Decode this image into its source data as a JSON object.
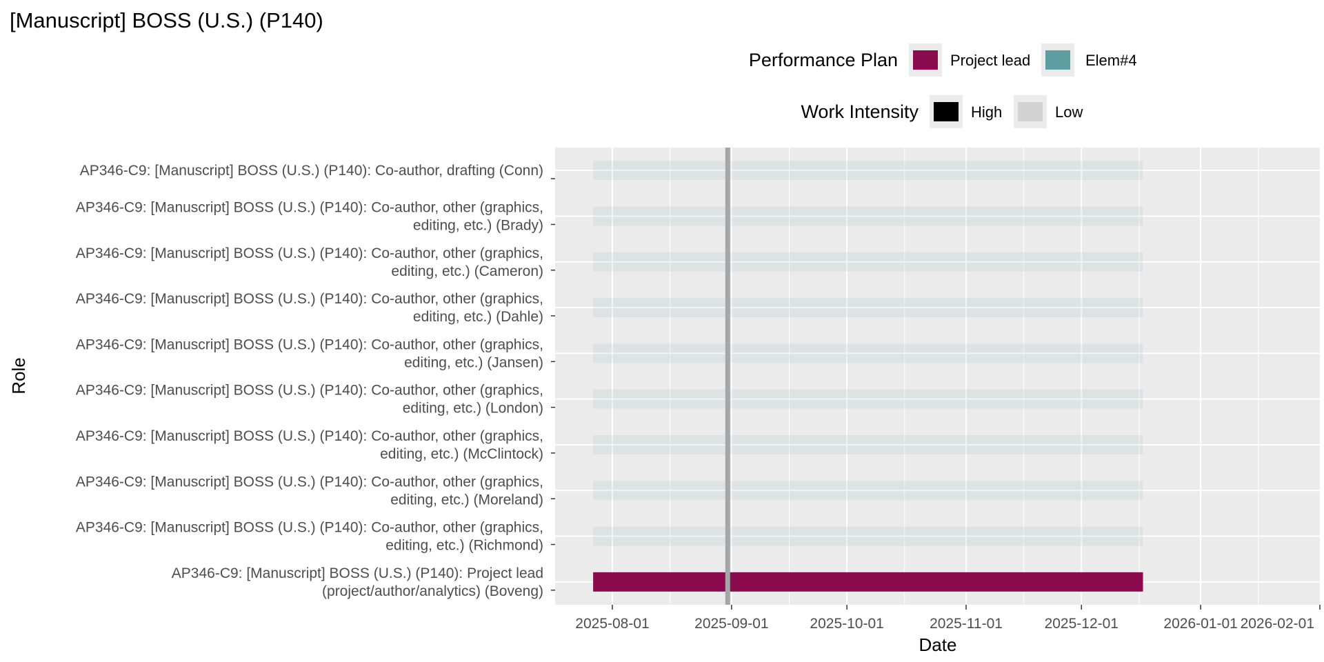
{
  "chart_data": {
    "type": "gantt",
    "title": "[Manuscript] BOSS (U.S.) (P140)",
    "xlabel": "Date",
    "ylabel": "Role",
    "x_axis": {
      "type": "date",
      "range": [
        "2025-07-17",
        "2026-02-01"
      ],
      "ticks": [
        "2025-08-01",
        "2025-09-01",
        "2025-10-01",
        "2025-11-01",
        "2025-12-01",
        "2026-01-01",
        "2026-02-01"
      ]
    },
    "reference_line": {
      "date": "2025-08-31",
      "color": "#a6a6a6"
    },
    "legends": [
      {
        "title": "Performance Plan",
        "entries": [
          {
            "label": "Project lead",
            "color": "#8b0b4e"
          },
          {
            "label": "Elem#4",
            "color": "#5f9ea0"
          }
        ]
      },
      {
        "title": "Work Intensity",
        "entries": [
          {
            "label": "High",
            "color": "#000000"
          },
          {
            "label": "Low",
            "color": "#d3d3d3"
          }
        ]
      }
    ],
    "tasks": [
      {
        "role": [
          "AP346-C9: [Manuscript] BOSS (U.S.) (P140): Co-author, drafting (Conn)"
        ],
        "start": "2025-07-27",
        "end": "2025-12-17",
        "plan": "Elem#4",
        "intensity": "Low"
      },
      {
        "role": [
          "AP346-C9: [Manuscript] BOSS (U.S.) (P140): Co-author, other (graphics,",
          "editing, etc.) (Brady)"
        ],
        "start": "2025-07-27",
        "end": "2025-12-17",
        "plan": "Elem#4",
        "intensity": "Low"
      },
      {
        "role": [
          "AP346-C9: [Manuscript] BOSS (U.S.) (P140): Co-author, other (graphics,",
          "editing, etc.) (Cameron)"
        ],
        "start": "2025-07-27",
        "end": "2025-12-17",
        "plan": "Elem#4",
        "intensity": "Low"
      },
      {
        "role": [
          "AP346-C9: [Manuscript] BOSS (U.S.) (P140): Co-author, other (graphics,",
          "editing, etc.) (Dahle)"
        ],
        "start": "2025-07-27",
        "end": "2025-12-17",
        "plan": "Elem#4",
        "intensity": "Low"
      },
      {
        "role": [
          "AP346-C9: [Manuscript] BOSS (U.S.) (P140): Co-author, other (graphics,",
          "editing, etc.) (Jansen)"
        ],
        "start": "2025-07-27",
        "end": "2025-12-17",
        "plan": "Elem#4",
        "intensity": "Low"
      },
      {
        "role": [
          "AP346-C9: [Manuscript] BOSS (U.S.) (P140): Co-author, other (graphics,",
          "editing, etc.) (London)"
        ],
        "start": "2025-07-27",
        "end": "2025-12-17",
        "plan": "Elem#4",
        "intensity": "Low"
      },
      {
        "role": [
          "AP346-C9: [Manuscript] BOSS (U.S.) (P140): Co-author, other (graphics,",
          "editing, etc.) (McClintock)"
        ],
        "start": "2025-07-27",
        "end": "2025-12-17",
        "plan": "Elem#4",
        "intensity": "Low"
      },
      {
        "role": [
          "AP346-C9: [Manuscript] BOSS (U.S.) (P140): Co-author, other (graphics,",
          "editing, etc.) (Moreland)"
        ],
        "start": "2025-07-27",
        "end": "2025-12-17",
        "plan": "Elem#4",
        "intensity": "Low"
      },
      {
        "role": [
          "AP346-C9: [Manuscript] BOSS (U.S.) (P140): Co-author, other (graphics,",
          "editing, etc.) (Richmond)"
        ],
        "start": "2025-07-27",
        "end": "2025-12-17",
        "plan": "Elem#4",
        "intensity": "Low"
      },
      {
        "role": [
          "AP346-C9: [Manuscript] BOSS (U.S.) (P140): Project lead",
          "(project/author/analytics) (Boveng)"
        ],
        "start": "2025-07-27",
        "end": "2025-12-17",
        "plan": "Project lead",
        "intensity": "High"
      }
    ]
  }
}
